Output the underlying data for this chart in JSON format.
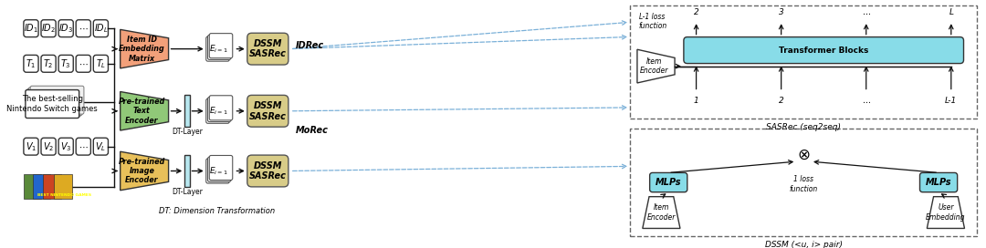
{
  "bg_color": "#ffffff",
  "figsize": [
    10.8,
    2.72
  ],
  "dpi": 100,
  "id_labels": [
    "$ID_1$",
    "$ID_2$",
    "$ID_3$",
    "$\\cdots$",
    "$ID_L$"
  ],
  "t_labels": [
    "$T_1$",
    "$T_2$",
    "$T_3$",
    "$\\cdots$",
    "$T_L$"
  ],
  "v_labels": [
    "$V_1$",
    "$V_2$",
    "$V_3$",
    "$\\cdots$",
    "$V_L$"
  ],
  "embed_color": "#f2a07a",
  "pretrained_text_color": "#90c878",
  "pretrained_image_color": "#e8c05a",
  "dssm_color": "#d8cc88",
  "dt_layer_color": "#b8e8f0",
  "transformer_color": "#88dce8",
  "mlp_color": "#88dce8",
  "text_id": "Item ID\nEmbedding\nMatrix",
  "text_pretrained_text": "Pre-trained\nText\nEncoder",
  "text_pretrained_image": "Pre-trained\nImage\nEncoder",
  "text_dssm": "DSSM\nSASRec",
  "text_idrec": "IDRec",
  "text_morec": "MoRec",
  "text_dt_dim": "DT: Dimension Transformation",
  "text_sasrec_label": "SASRec (seq2seq)",
  "text_dssm_pair": "DSSM (<u, i> pair)",
  "text_transformer": "Transformer Blocks",
  "text_item_enc1": "Item\nEncoder",
  "text_item_enc2": "Item\nEncoder",
  "text_user_emb": "User\nEmbedding",
  "text_mlp1": "MLPs",
  "text_mlp2": "MLPs",
  "text_l1_loss": "L-1 loss\nfunction",
  "text_1_loss": "1 loss\nfunction",
  "text_dt_layer": "DT-Layer",
  "text_ei": "$E_{i=1}$",
  "text_bestgames": "The best-selling\nNintendo Switch games",
  "tick_labels_top": [
    "2",
    "3",
    "$\\cdots$",
    "L"
  ],
  "tick_labels_bot": [
    "1",
    "2",
    "$\\cdots$",
    "L-1"
  ],
  "dashed_arrow_color": "#7ab0d8"
}
